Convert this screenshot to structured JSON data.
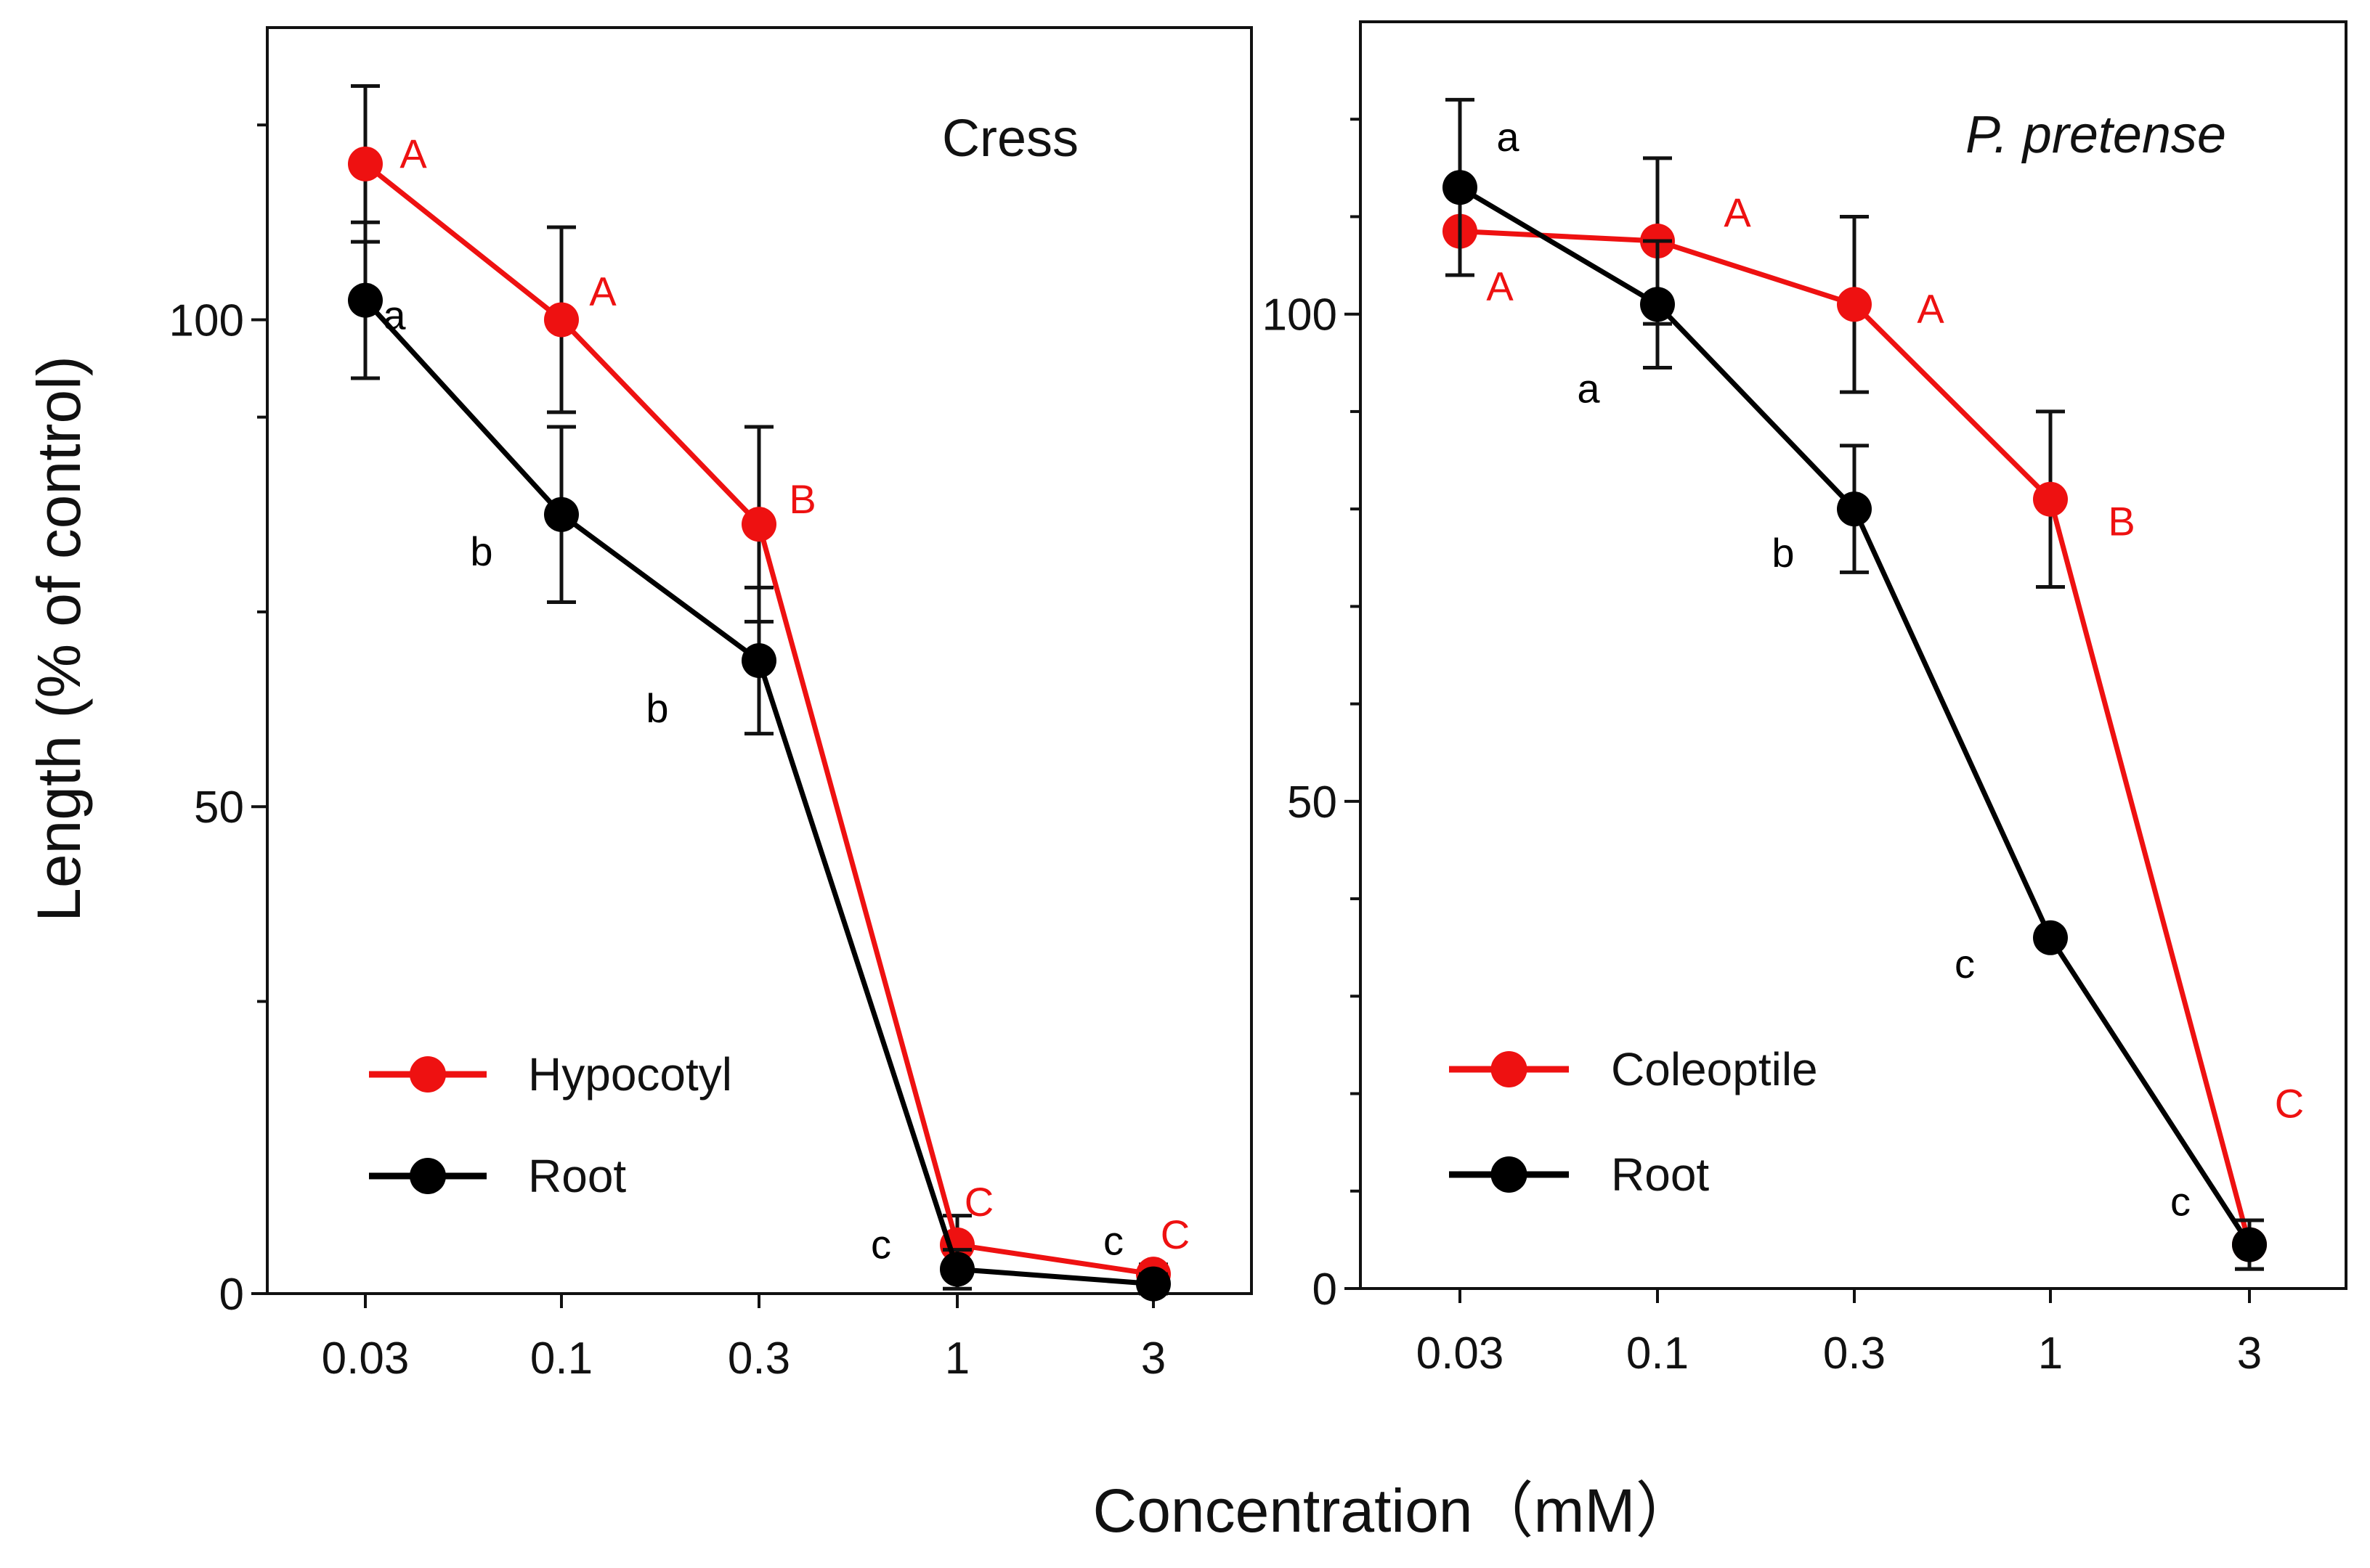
{
  "figure": {
    "ylabel": "Length (% of control)",
    "xlabel": "Concentration（mM）"
  },
  "chart_data": [
    {
      "type": "line",
      "title": "Cress",
      "title_style": "normal",
      "xlabel": "Concentration（mM）",
      "ylabel": "Length (% of control)",
      "categories": [
        "0.03",
        "0.1",
        "0.3",
        "1",
        "3"
      ],
      "ylim": [
        0,
        130
      ],
      "yticks": [
        0,
        50,
        100
      ],
      "yticks_labeled": [
        "0",
        "50",
        "100"
      ],
      "minor_yticks": [
        30,
        70,
        90,
        120
      ],
      "legend_position": "bottom-left",
      "series": [
        {
          "name": "Hypocotyl",
          "color": "#ee1111",
          "values": [
            116,
            100,
            79,
            5,
            2
          ],
          "errors": [
            8,
            9.5,
            10,
            3,
            1
          ],
          "letters": [
            "A",
            "A",
            "B",
            "C",
            "C"
          ]
        },
        {
          "name": "Root",
          "color": "#000000",
          "values": [
            102,
            80,
            65,
            2.5,
            1
          ],
          "errors": [
            8,
            9,
            7.5,
            2,
            1
          ],
          "letters": [
            "a",
            "b",
            "b",
            "c",
            "c"
          ]
        }
      ]
    },
    {
      "type": "line",
      "title": "P. pretense",
      "title_style": "italic",
      "xlabel": "Concentration（mM）",
      "ylabel": "Length (% of control)",
      "categories": [
        "0.03",
        "0.1",
        "0.3",
        "1",
        "3"
      ],
      "ylim": [
        0,
        130
      ],
      "yticks": [
        0,
        50,
        100
      ],
      "yticks_labeled": [
        "0",
        "50",
        "100"
      ],
      "minor_yticks": [
        10,
        20,
        30,
        40,
        60,
        70,
        80,
        90,
        110,
        120
      ],
      "legend_position": "bottom-left",
      "series": [
        {
          "name": "Coleoptile",
          "color": "#ee1111",
          "values": [
            108.5,
            107.5,
            101,
            81,
            4.5
          ],
          "errors": [
            4.5,
            8.5,
            9,
            9,
            2.5
          ],
          "letters": [
            "A",
            "A",
            "A",
            "B",
            "C"
          ]
        },
        {
          "name": "Root",
          "color": "#000000",
          "values": [
            113,
            101,
            80,
            36,
            4.5
          ],
          "errors": [
            9,
            6.5,
            6.5,
            0,
            2.5
          ],
          "letters": [
            "a",
            "a",
            "b",
            "c",
            "c"
          ]
        }
      ]
    }
  ]
}
